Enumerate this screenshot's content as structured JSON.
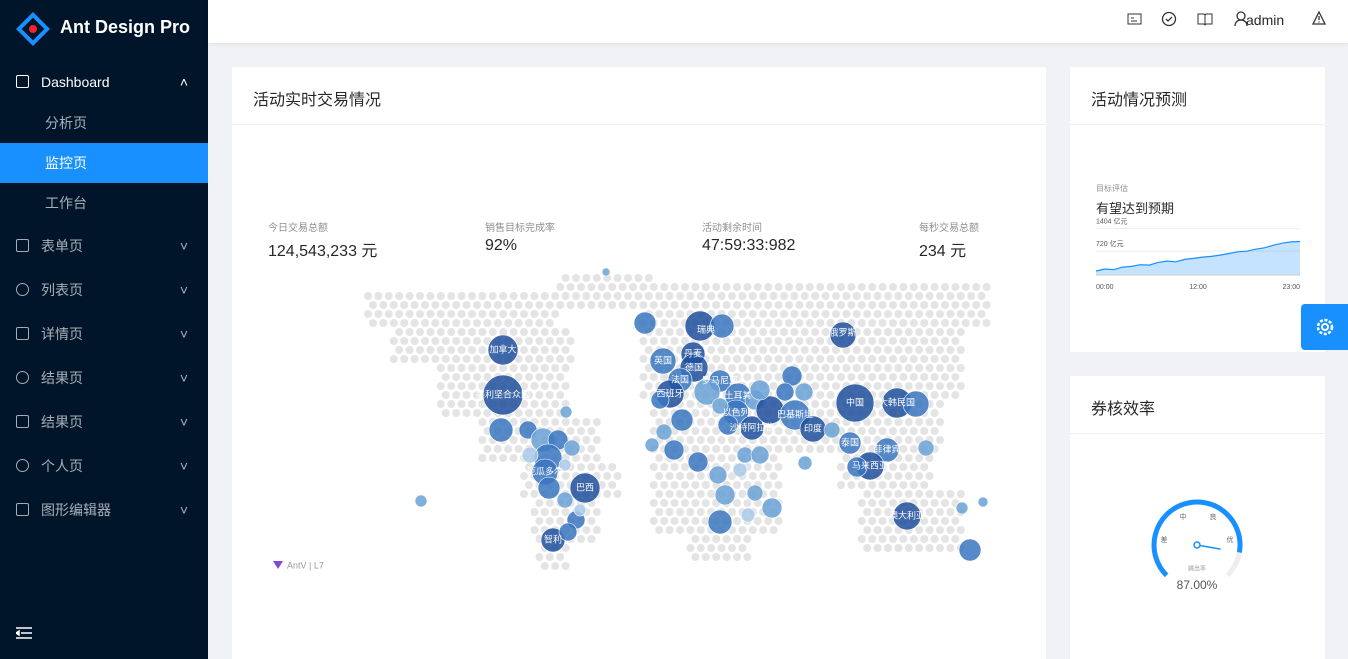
{
  "logo": {
    "title": "Ant Design Pro"
  },
  "header": {
    "user": "admin"
  },
  "menu": {
    "items": [
      "Dashboard",
      "分析页",
      "监控页",
      "工作台",
      "表单页",
      "列表页",
      "详情页",
      "结果页",
      "结果页",
      "个人页",
      "图形编辑器"
    ]
  },
  "card_realtime": {
    "title": "活动实时交易情况",
    "stats": [
      {
        "label": "今日交易总额",
        "value": "124,543,233 元"
      },
      {
        "label": "销售目标完成率",
        "value": "92%"
      },
      {
        "label": "活动剩余时间",
        "value": "47:59:33:982"
      },
      {
        "label": "每秒交易总额",
        "value": "234 元"
      }
    ],
    "map_labels": [
      "加拿大",
      "美利坚合众国",
      "厄瓜多尔",
      "巴西",
      "智利",
      "瑞典",
      "丹麦",
      "英国",
      "德国",
      "法国",
      "罗马尼亚",
      "西班牙",
      "土耳其",
      "以色列",
      "沙特阿拉伯",
      "巴基斯坦",
      "印度",
      "中国",
      "大韩民国",
      "泰国",
      "菲律宾",
      "马来西亚",
      "澳大利亚",
      "俄罗斯"
    ],
    "watermark": "AntV | L7"
  },
  "card_forecast": {
    "title": "活动情况预测",
    "subtitle": "目标评估",
    "headline": "有望达到预期",
    "chart_data": {
      "type": "area",
      "x_labels": [
        "00:00",
        "12:00",
        "23:00"
      ],
      "values": [
        120,
        180,
        160,
        240,
        260,
        310,
        300,
        380,
        420,
        400,
        470,
        500,
        540,
        560,
        600,
        650,
        700,
        720,
        780,
        820,
        900,
        960,
        1000,
        1010
      ],
      "ylim": [
        0,
        1600
      ],
      "yticks": [
        {
          "value": 1404,
          "label": "1404 亿元"
        },
        {
          "value": 720,
          "label": "720 亿元"
        }
      ],
      "color": "#1890ff"
    }
  },
  "card_gauge": {
    "title": "券核效率",
    "chart_data": {
      "type": "gauge",
      "value": 87,
      "value_label": "87.00%",
      "ylim": [
        0,
        100
      ],
      "levels": [
        "差",
        "中",
        "良",
        "优"
      ],
      "caption": "跳出率",
      "color": "#1890ff"
    }
  }
}
